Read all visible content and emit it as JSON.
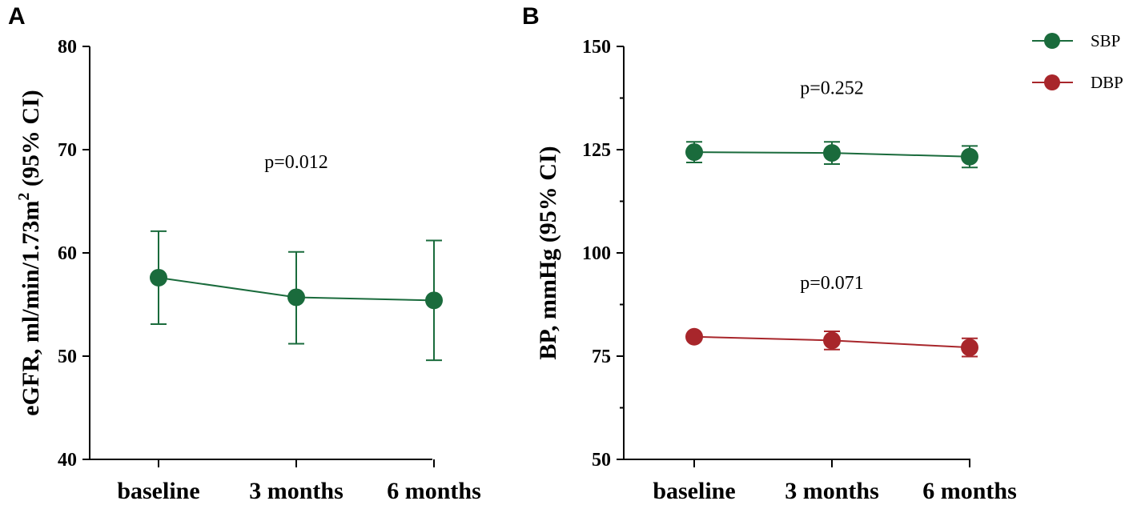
{
  "chart_data": [
    {
      "panel": "A",
      "type": "line",
      "ylabel": "eGFR, ml/min/1.73m",
      "ylabel_superscript": "2",
      "ylabel_suffix": " (95% CI)",
      "xlabel": "",
      "categories": [
        "baseline",
        "3 months",
        "6 months"
      ],
      "ylim": [
        40,
        80
      ],
      "yticks": [
        40,
        50,
        60,
        70,
        80
      ],
      "grid": false,
      "series": [
        {
          "name": "eGFR",
          "color": "#1a6b3c",
          "values": [
            57.6,
            55.7,
            55.4
          ],
          "ci_low": [
            53.1,
            51.2,
            49.6
          ],
          "ci_high": [
            62.1,
            60.1,
            61.2
          ]
        }
      ],
      "annotations": [
        {
          "text": "p=0.012",
          "x": 1,
          "y": 68.2
        }
      ]
    },
    {
      "panel": "B",
      "type": "line",
      "ylabel": "BP, mmHg (95% CI)",
      "xlabel": "",
      "categories": [
        "baseline",
        "3 months",
        "6 months"
      ],
      "ylim": [
        50,
        150
      ],
      "yticks": [
        50,
        75,
        100,
        125,
        150
      ],
      "grid": false,
      "legend_position": "top-right",
      "series": [
        {
          "name": "SBP",
          "color": "#1a6b3c",
          "values": [
            124.4,
            124.2,
            123.3
          ],
          "ci_low": [
            121.9,
            121.5,
            120.7
          ],
          "ci_high": [
            126.9,
            126.9,
            125.9
          ]
        },
        {
          "name": "DBP",
          "color": "#a8262b",
          "values": [
            79.7,
            78.8,
            77.1
          ],
          "ci_low": [
            79.0,
            76.6,
            74.9
          ],
          "ci_high": [
            80.4,
            81.0,
            79.3
          ]
        }
      ],
      "annotations": [
        {
          "text": "p=0.252",
          "x": 1,
          "y": 138.5
        },
        {
          "text": "p=0.071",
          "x": 1,
          "y": 91.3
        }
      ]
    }
  ]
}
